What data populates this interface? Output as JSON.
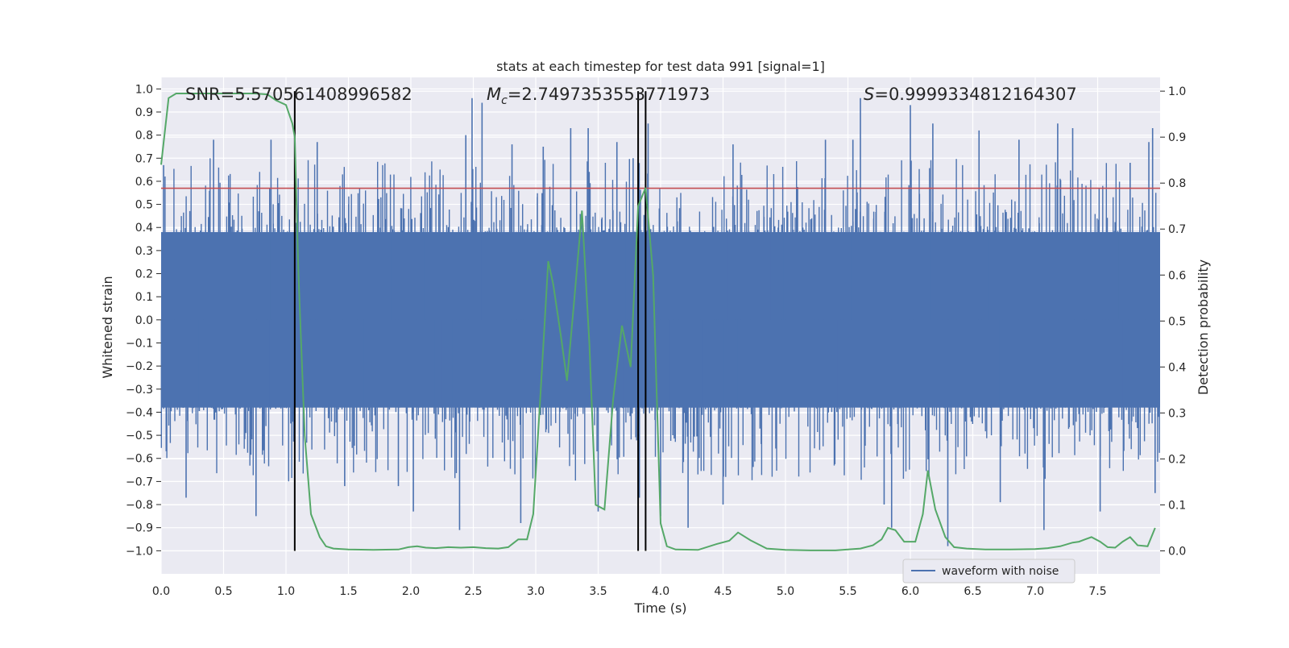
{
  "chart_data": {
    "type": "line",
    "title": "stats at each timestep for test data 991 [signal=1]",
    "xlabel": "Time (s)",
    "ylabel_left": "Whitened strain",
    "ylabel_right": "Detection probability",
    "xlim": [
      0,
      8
    ],
    "ylim_left": [
      -1.1,
      1.05
    ],
    "ylim_right": [
      -0.05,
      1.03
    ],
    "x_ticks": [
      "0.0",
      "0.5",
      "1.0",
      "1.5",
      "2.0",
      "2.5",
      "3.0",
      "3.5",
      "4.0",
      "4.5",
      "5.0",
      "5.5",
      "6.0",
      "6.5",
      "7.0",
      "7.5"
    ],
    "y_ticks_left": [
      "1.0",
      "0.9",
      "0.8",
      "0.7",
      "0.6",
      "0.5",
      "0.4",
      "0.3",
      "0.2",
      "0.1",
      "0.0",
      "-0.1",
      "-0.2",
      "-0.3",
      "-0.4",
      "-0.5",
      "-0.6",
      "-0.7",
      "-0.8",
      "-0.9",
      "-1.0"
    ],
    "y_ticks_right": [
      "1.0",
      "0.9",
      "0.8",
      "0.7",
      "0.6",
      "0.5",
      "0.4",
      "0.3",
      "0.2",
      "0.1",
      "0.0"
    ],
    "grid": true,
    "legend": {
      "position": "bottom-right",
      "entries": [
        "waveform with noise"
      ]
    },
    "annotations": {
      "snr": "SNR=5.570561408996582",
      "mc_symbol": "M",
      "mc_sub": "c",
      "mc_value": "=2.7497353553771973",
      "s_symbol": "S",
      "s_value": "=0.9999334812164307"
    },
    "threshold_strain": 0.57,
    "vertical_markers_s": [
      1.07,
      3.82,
      3.88
    ],
    "strain_series": {
      "name": "waveform with noise",
      "band_abs": 0.38,
      "peaks": [
        [
          0.02,
          0.67
        ],
        [
          0.2,
          -0.77
        ],
        [
          0.42,
          0.78
        ],
        [
          0.76,
          -0.85
        ],
        [
          0.88,
          0.78
        ],
        [
          1.25,
          0.77
        ],
        [
          1.47,
          -0.72
        ],
        [
          1.9,
          -0.72
        ],
        [
          2.02,
          -0.83
        ],
        [
          2.44,
          0.8
        ],
        [
          2.49,
          0.96
        ],
        [
          2.57,
          0.94
        ],
        [
          2.39,
          -0.91
        ],
        [
          2.88,
          -0.88
        ],
        [
          2.81,
          0.76
        ],
        [
          3.06,
          0.75
        ],
        [
          3.28,
          0.83
        ],
        [
          3.42,
          0.83
        ],
        [
          3.5,
          -0.83
        ],
        [
          3.65,
          0.77
        ],
        [
          3.78,
          0.7
        ],
        [
          3.83,
          -0.77
        ],
        [
          3.9,
          0.85
        ],
        [
          4.0,
          -0.85
        ],
        [
          4.22,
          -0.9
        ],
        [
          4.5,
          -0.8
        ],
        [
          4.58,
          0.76
        ],
        [
          5.32,
          0.78
        ],
        [
          5.54,
          0.78
        ],
        [
          5.6,
          0.96
        ],
        [
          5.79,
          -0.8
        ],
        [
          5.85,
          -0.9
        ],
        [
          6.0,
          0.93
        ],
        [
          6.18,
          0.85
        ],
        [
          6.3,
          -0.98
        ],
        [
          6.55,
          0.82
        ],
        [
          6.72,
          -0.79
        ],
        [
          6.87,
          0.78
        ],
        [
          7.07,
          -0.91
        ],
        [
          7.18,
          0.85
        ],
        [
          7.3,
          0.83
        ],
        [
          7.52,
          -0.83
        ],
        [
          7.76,
          0.68
        ],
        [
          7.91,
          0.77
        ],
        [
          7.94,
          0.83
        ],
        [
          7.96,
          -0.75
        ]
      ]
    },
    "probability_series": {
      "x": [
        0.0,
        0.06,
        0.12,
        0.2,
        0.3,
        0.45,
        0.6,
        0.75,
        0.85,
        0.92,
        1.0,
        1.05,
        1.07,
        1.1,
        1.15,
        1.2,
        1.27,
        1.32,
        1.38,
        1.5,
        1.7,
        1.9,
        1.98,
        2.05,
        2.12,
        2.2,
        2.3,
        2.4,
        2.5,
        2.6,
        2.7,
        2.78,
        2.86,
        2.93,
        2.98,
        3.04,
        3.1,
        3.14,
        3.2,
        3.25,
        3.31,
        3.37,
        3.43,
        3.48,
        3.55,
        3.62,
        3.69,
        3.76,
        3.82,
        3.88,
        3.94,
        4.0,
        4.05,
        4.12,
        4.3,
        4.45,
        4.55,
        4.62,
        4.72,
        4.85,
        5.0,
        5.2,
        5.4,
        5.6,
        5.7,
        5.77,
        5.82,
        5.88,
        5.95,
        6.04,
        6.1,
        6.14,
        6.2,
        6.28,
        6.35,
        6.45,
        6.6,
        6.8,
        7.0,
        7.1,
        7.2,
        7.3,
        7.35,
        7.4,
        7.45,
        7.52,
        7.58,
        7.64,
        7.7,
        7.76,
        7.82,
        7.9,
        7.96
      ],
      "y": [
        0.84,
        0.985,
        0.995,
        0.995,
        0.995,
        0.995,
        0.995,
        0.995,
        0.993,
        0.98,
        0.97,
        0.93,
        0.9,
        0.6,
        0.25,
        0.08,
        0.03,
        0.01,
        0.005,
        0.003,
        0.002,
        0.003,
        0.008,
        0.01,
        0.007,
        0.006,
        0.008,
        0.007,
        0.008,
        0.006,
        0.005,
        0.008,
        0.025,
        0.025,
        0.08,
        0.35,
        0.63,
        0.58,
        0.47,
        0.37,
        0.55,
        0.74,
        0.45,
        0.1,
        0.09,
        0.33,
        0.49,
        0.4,
        0.75,
        0.79,
        0.6,
        0.06,
        0.01,
        0.003,
        0.002,
        0.015,
        0.022,
        0.04,
        0.023,
        0.005,
        0.002,
        0.001,
        0.001,
        0.005,
        0.012,
        0.025,
        0.05,
        0.045,
        0.02,
        0.02,
        0.08,
        0.175,
        0.09,
        0.03,
        0.008,
        0.005,
        0.003,
        0.003,
        0.004,
        0.006,
        0.01,
        0.018,
        0.02,
        0.025,
        0.03,
        0.02,
        0.008,
        0.007,
        0.02,
        0.03,
        0.012,
        0.01,
        0.05
      ]
    },
    "colors": {
      "plot_background": "#EAEAF2",
      "grid": "#FFFFFF",
      "strain": "#4C72B0",
      "probability": "#55A868",
      "threshold": "#C44E52",
      "markers": "#000000"
    }
  }
}
